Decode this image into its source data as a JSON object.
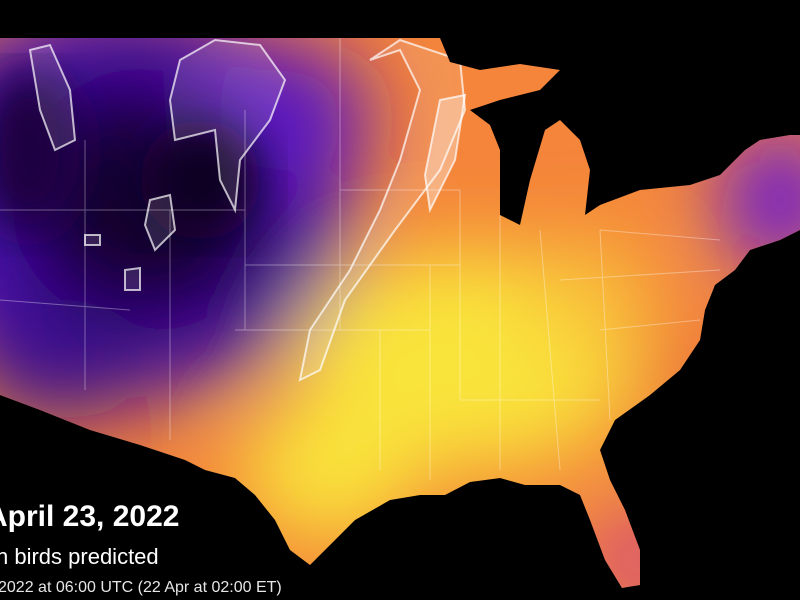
{
  "caption": {
    "date": "April 23, 2022",
    "subtitle": "n birds predicted",
    "timestamp": "2022 at 06:00 UTC (22 Apr at 02:00 ET)"
  },
  "colors": {
    "background": "#000000",
    "low": "#12032e",
    "mid_low": "#4a0fb0",
    "mid": "#c2349a",
    "mid_high": "#f4853a",
    "high": "#f9e43a",
    "borders": "#ffffff"
  }
}
